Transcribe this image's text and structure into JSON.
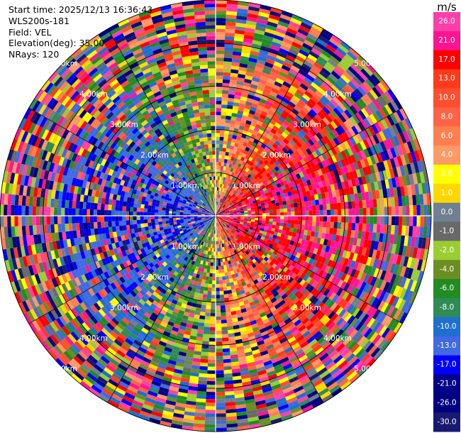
{
  "info": {
    "start_time": "Start time: 2025/12/13 16:36:43",
    "station": "WLS200s-181",
    "field": "Field: VEL",
    "elevation": "Elevation(deg): 35.00",
    "nrays": "NRays: 120"
  },
  "chart_data": {
    "type": "heatmap",
    "subtype": "polar-ppi",
    "field": "VEL",
    "rays": 120,
    "range_unit": "km",
    "range_ring_labels": [
      "1.00km",
      "2.00km",
      "3.00km",
      "4.00km",
      "5.00km"
    ],
    "colorbar": {
      "unit": "m/s",
      "ticks": [
        "26.0",
        "21.0",
        "17.0",
        "13.0",
        "10.0",
        "8.0",
        "6.0",
        "4.0",
        "2.0",
        "1.0",
        "0.0",
        "-1.0",
        "-2.0",
        "-4.0",
        "-6.0",
        "-8.0",
        "-10.0",
        "-13.0",
        "-17.0",
        "-21.0",
        "-26.0",
        "-30.0"
      ],
      "colors": [
        "#ff3fa9",
        "#ff1493",
        "#ff0000",
        "#ff3a1a",
        "#ff4f2f",
        "#ff6347",
        "#ff7f50",
        "#ff9966",
        "#ffff00",
        "#ffd700",
        "#708090",
        "#696969",
        "#9acd32",
        "#6b8e23",
        "#228b22",
        "#2e8b57",
        "#1e6fd0",
        "#4169e1",
        "#0000ff",
        "#00008b",
        "#000080",
        "#191970"
      ]
    }
  }
}
